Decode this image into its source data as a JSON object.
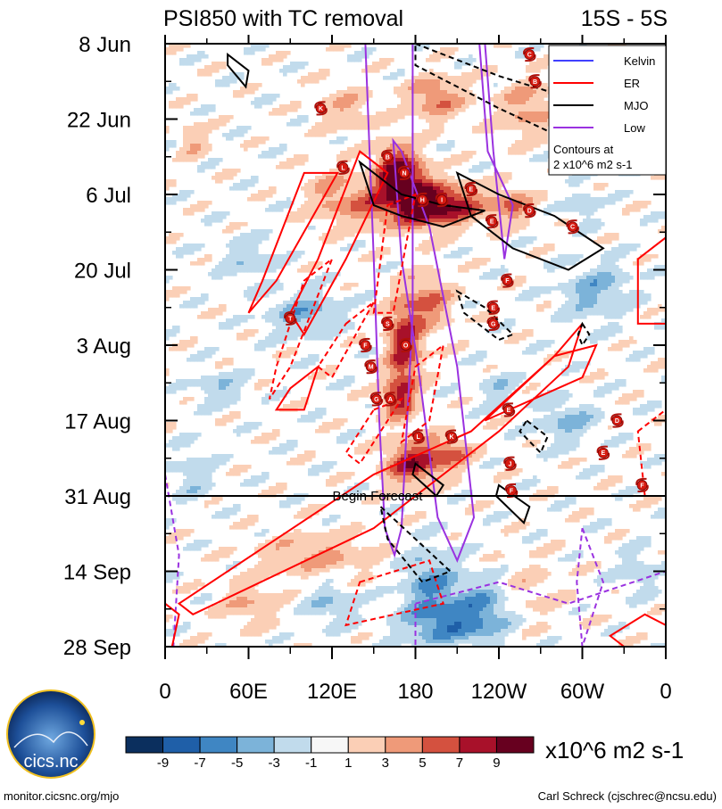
{
  "chart_data": {
    "type": "heatmap",
    "title": "PSI850 with TC removal",
    "latitude_band": "15S - 5S",
    "y_ticks": [
      "8 Jun",
      "22 Jun",
      "6 Jul",
      "20 Jul",
      "3 Aug",
      "17 Aug",
      "31 Aug",
      "14 Sep",
      "28 Sep"
    ],
    "x_ticks": [
      "0",
      "60E",
      "120E",
      "180",
      "120W",
      "60W",
      "0"
    ],
    "x_range_deg": [
      0,
      360
    ],
    "time_range_days": [
      0,
      112
    ],
    "forecast_label": "Begin Forecast",
    "forecast_day": 84,
    "colorbar": {
      "labels": [
        "-9",
        "-7",
        "-5",
        "-3",
        "-1",
        "1",
        "3",
        "5",
        "7",
        "9"
      ],
      "colors": [
        "#0b2f5e",
        "#1f5fa8",
        "#3f86c3",
        "#7cb3d9",
        "#c1dbec",
        "#f7f7f7",
        "#fbcfb6",
        "#ef9a79",
        "#d4513f",
        "#a8112a",
        "#67001f"
      ],
      "units": "x10^6 m2 s-1"
    },
    "legend": {
      "entries": [
        {
          "name": "Kelvin",
          "color": "#4040ff"
        },
        {
          "name": "ER",
          "color": "#ff0000"
        },
        {
          "name": "MJO",
          "color": "#000000"
        },
        {
          "name": "Low",
          "color": "#9a32e0"
        }
      ],
      "note_line1": "Contours at",
      "note_line2": "2 x10^6 m2 s-1"
    },
    "storms": [
      {
        "letter": "C",
        "lon": 262,
        "day": 2
      },
      {
        "letter": "B",
        "lon": 266,
        "day": 7
      },
      {
        "letter": "K",
        "lon": 112,
        "day": 12
      },
      {
        "letter": "L",
        "lon": 128,
        "day": 23
      },
      {
        "letter": "B",
        "lon": 160,
        "day": 21
      },
      {
        "letter": "N",
        "lon": 172,
        "day": 24
      },
      {
        "letter": "H",
        "lon": 185,
        "day": 29
      },
      {
        "letter": "I",
        "lon": 199,
        "day": 29
      },
      {
        "letter": "E",
        "lon": 220,
        "day": 27
      },
      {
        "letter": "D",
        "lon": 262,
        "day": 31
      },
      {
        "letter": "E",
        "lon": 235,
        "day": 33
      },
      {
        "letter": "C",
        "lon": 293,
        "day": 34
      },
      {
        "letter": "F",
        "lon": 246,
        "day": 44
      },
      {
        "letter": "E",
        "lon": 236,
        "day": 49
      },
      {
        "letter": "G",
        "lon": 236,
        "day": 52
      },
      {
        "letter": "T",
        "lon": 90,
        "day": 51
      },
      {
        "letter": "S",
        "lon": 160,
        "day": 52
      },
      {
        "letter": "F",
        "lon": 144,
        "day": 56
      },
      {
        "letter": "O",
        "lon": 173,
        "day": 56
      },
      {
        "letter": "M",
        "lon": 148,
        "day": 60
      },
      {
        "letter": "A",
        "lon": 162,
        "day": 66
      },
      {
        "letter": "G",
        "lon": 152,
        "day": 66
      },
      {
        "letter": "L",
        "lon": 182,
        "day": 73
      },
      {
        "letter": "K",
        "lon": 206,
        "day": 73
      },
      {
        "letter": "E",
        "lon": 247,
        "day": 68
      },
      {
        "letter": "D",
        "lon": 325,
        "day": 70
      },
      {
        "letter": "E",
        "lon": 315,
        "day": 76
      },
      {
        "letter": "J",
        "lon": 248,
        "day": 78
      },
      {
        "letter": "F",
        "lon": 343,
        "day": 82
      },
      {
        "letter": "F",
        "lon": 249,
        "day": 83
      }
    ]
  },
  "logo": {
    "text": "cics.nc",
    "ring_text": "Cooperative Institute for Climate and Satellites"
  },
  "footer": {
    "left": "monitor.cicsnc.org/mjo",
    "right": "Carl Schreck (cjschrec@ncsu.edu)"
  }
}
